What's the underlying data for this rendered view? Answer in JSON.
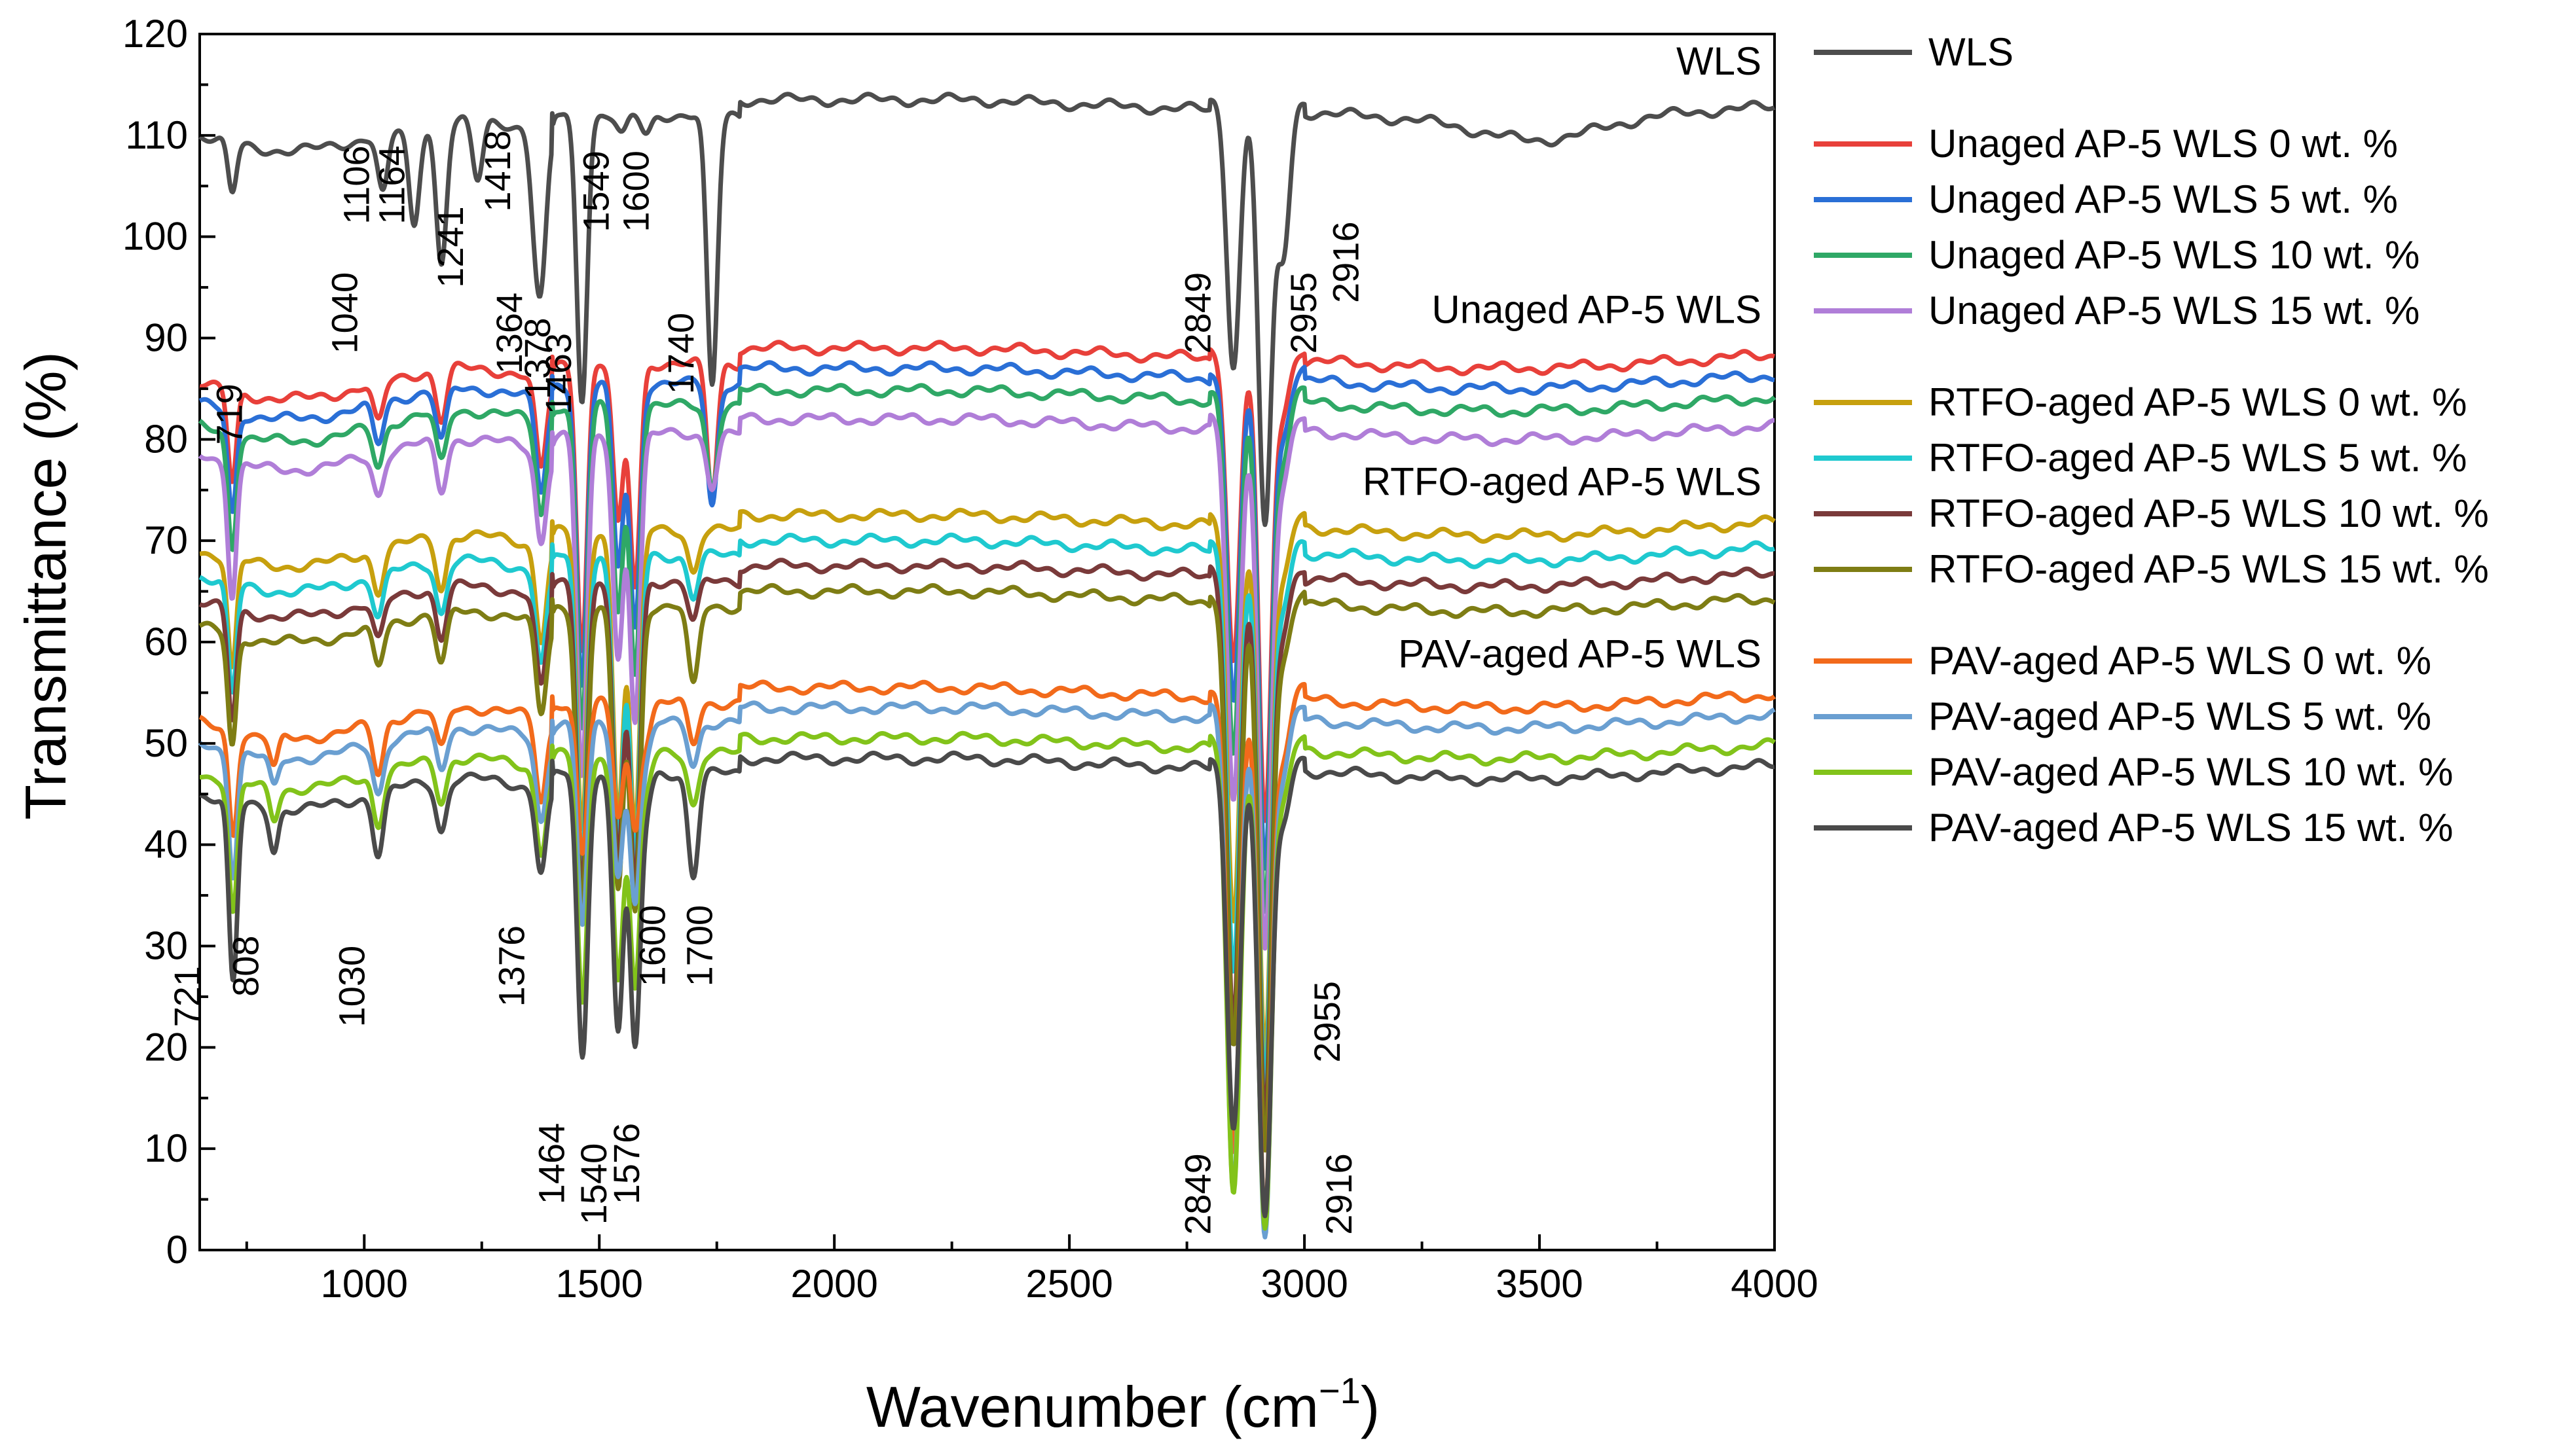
{
  "chart_data": {
    "type": "line",
    "title": "",
    "xlabel": "Wavenumber (cm",
    "xlabel_sup": "−1",
    "xlabel_close": ")",
    "ylabel": "Transmittance (%)",
    "xlim": [
      650,
      4000
    ],
    "ylim": [
      0,
      120
    ],
    "x_ticks": [
      1000,
      1500,
      2000,
      2500,
      3000,
      3500,
      4000
    ],
    "y_ticks": [
      0,
      10,
      20,
      30,
      40,
      50,
      60,
      70,
      80,
      90,
      100,
      110,
      120
    ],
    "group_labels": [
      {
        "text": "WLS",
        "x": 3950,
        "y": 116
      },
      {
        "text": "Unaged AP-5 WLS",
        "x": 3950,
        "y": 91.5
      },
      {
        "text": "RTFO-aged AP-5 WLS",
        "x": 3950,
        "y": 74.5
      },
      {
        "text": "PAV-aged AP-5 WLS",
        "x": 3950,
        "y": 57.5
      }
    ],
    "series": [
      {
        "name": "WLS",
        "color": "#4d4d4d",
        "baseline": 113.5,
        "depths": {
          "719": 5,
          "1040": 6,
          "1106": 10,
          "1164": 14,
          "1241": 6,
          "1364": 8,
          "1378": 12,
          "1463": 28,
          "1549": 2,
          "1600": 2,
          "1740": 27,
          "2849": 26,
          "2916": 42,
          "2955": 15,
          "3500": 2
        }
      },
      {
        "name": "Unaged AP-5 WLS 0 wt. %",
        "color": "#e8403a",
        "baseline": 89,
        "depths": {
          "719": 9,
          "1030": 4,
          "1164": 5,
          "1376": 9,
          "1463": 28,
          "1540": 16,
          "1576": 22,
          "1740": 13,
          "2849": 31,
          "2916": 47,
          "2955": 6
        }
      },
      {
        "name": "Unaged AP-5 WLS 5 wt. %",
        "color": "#2a6fd6",
        "baseline": 87,
        "depths": {
          "719": 10,
          "1030": 4,
          "1164": 5,
          "1376": 9,
          "1463": 30,
          "1540": 18,
          "1576": 24,
          "1740": 12,
          "2849": 33,
          "2916": 49,
          "2955": 6
        }
      },
      {
        "name": "Unaged AP-5 WLS 10 wt. %",
        "color": "#2fa866",
        "baseline": 84.8,
        "depths": {
          "719": 11,
          "1030": 4,
          "1164": 5,
          "1376": 9,
          "1463": 32,
          "1540": 20,
          "1576": 26,
          "1740": 8,
          "2849": 36,
          "2916": 51,
          "2955": 6
        }
      },
      {
        "name": "Unaged AP-5 WLS 15 wt. %",
        "color": "#b07ed8",
        "baseline": 82,
        "depths": {
          "719": 13,
          "1030": 4,
          "1164": 5,
          "1376": 9,
          "1463": 34,
          "1540": 22,
          "1576": 28,
          "1740": 5,
          "2849": 38,
          "2916": 52,
          "2955": 6
        }
      },
      {
        "name": "RTFO-aged AP-5 WLS 0 wt. %",
        "color": "#c7a00e",
        "baseline": 72.5,
        "depths": {
          "719": 11,
          "1030": 4,
          "1164": 5,
          "1376": 9,
          "1463": 30,
          "1540": 28,
          "1576": 30,
          "1700": 4,
          "2849": 40,
          "2916": 53,
          "2955": 6
        }
      },
      {
        "name": "RTFO-aged AP-5 WLS 5 wt. %",
        "color": "#1fc9cf",
        "baseline": 70,
        "depths": {
          "719": 11,
          "1030": 4,
          "1164": 5,
          "1376": 9,
          "1463": 30,
          "1540": 28,
          "1576": 30,
          "1700": 4,
          "2849": 42,
          "2916": 54,
          "2955": 6
        }
      },
      {
        "name": "RTFO-aged AP-5 WLS 10 wt. %",
        "color": "#7a3a3a",
        "baseline": 67.5,
        "depths": {
          "719": 11,
          "1030": 4,
          "1164": 5,
          "1376": 9,
          "1463": 30,
          "1540": 28,
          "1576": 30,
          "1700": 4,
          "2849": 45,
          "2916": 55,
          "2955": 6
        }
      },
      {
        "name": "RTFO-aged AP-5 WLS 15 wt. %",
        "color": "#7e7d14",
        "baseline": 65,
        "depths": {
          "719": 11,
          "1030": 4,
          "1164": 5,
          "1376": 9,
          "1463": 30,
          "1540": 28,
          "1576": 30,
          "1700": 8,
          "2849": 45,
          "2916": 55,
          "2955": 6
        }
      },
      {
        "name": "PAV-aged AP-5 WLS 0 wt. %",
        "color": "#f26a1b",
        "baseline": 55.5,
        "depths": {
          "721": 10,
          "808": 3,
          "1030": 5,
          "1164": 4,
          "1376": 8,
          "1464": 15,
          "1540": 11,
          "1576": 12,
          "1600": 3,
          "1700": 4,
          "2849": 46,
          "2916": 52,
          "2955": 6
        }
      },
      {
        "name": "PAV-aged AP-5 WLS 5 wt. %",
        "color": "#6a9fd1",
        "baseline": 53.5,
        "depths": {
          "721": 12,
          "808": 3,
          "1030": 5,
          "1164": 4,
          "1376": 8,
          "1464": 20,
          "1540": 15,
          "1576": 17,
          "1600": 3,
          "1700": 4,
          "2849": 48,
          "2916": 52,
          "2955": 6
        }
      },
      {
        "name": "PAV-aged AP-5 WLS 10 wt. %",
        "color": "#82c31a",
        "baseline": 50.5,
        "depths": {
          "721": 13,
          "808": 3,
          "1030": 5,
          "1164": 4,
          "1376": 8,
          "1464": 25,
          "1540": 22,
          "1576": 23,
          "1600": 3,
          "1700": 5,
          "2849": 45,
          "2916": 48,
          "2955": 6
        }
      },
      {
        "name": "PAV-aged AP-5 WLS 15 wt. %",
        "color": "#4a4a4a",
        "baseline": 48.5,
        "depths": {
          "721": 18,
          "808": 4,
          "1030": 6,
          "1164": 5,
          "1376": 8,
          "1464": 28,
          "1540": 25,
          "1576": 27,
          "1600": 3,
          "1700": 10,
          "2849": 36,
          "2916": 45,
          "2955": 6
        }
      }
    ],
    "annotations": [
      {
        "text": "719",
        "x": 740,
        "y": 85.5,
        "rotate": -90,
        "anchor": "end"
      },
      {
        "text": "1040",
        "x": 985,
        "y": 96.5,
        "rotate": -90,
        "anchor": "end"
      },
      {
        "text": "1106",
        "x": 1010,
        "y": 109,
        "rotate": -90,
        "anchor": "end"
      },
      {
        "text": "1164",
        "x": 1085,
        "y": 109,
        "rotate": -90,
        "anchor": "end"
      },
      {
        "text": "1241",
        "x": 1210,
        "y": 103,
        "rotate": -90,
        "anchor": "end"
      },
      {
        "text": "1418",
        "x": 1310,
        "y": 110.5,
        "rotate": -90,
        "anchor": "end"
      },
      {
        "text": "1364",
        "x": 1335,
        "y": 94.5,
        "rotate": -90,
        "anchor": "end"
      },
      {
        "text": "1378",
        "x": 1395,
        "y": 92,
        "rotate": -90,
        "anchor": "end"
      },
      {
        "text": "1463",
        "x": 1440,
        "y": 90.5,
        "rotate": -90,
        "anchor": "end"
      },
      {
        "text": "1549",
        "x": 1520,
        "y": 108.5,
        "rotate": -90,
        "anchor": "end"
      },
      {
        "text": "1600",
        "x": 1605,
        "y": 108.5,
        "rotate": -90,
        "anchor": "end"
      },
      {
        "text": "1740",
        "x": 1700,
        "y": 92.5,
        "rotate": -90,
        "anchor": "end"
      },
      {
        "text": "2849",
        "x": 2800,
        "y": 96.5,
        "rotate": -90,
        "anchor": "end"
      },
      {
        "text": "2955",
        "x": 3025,
        "y": 96.5,
        "rotate": -90,
        "anchor": "end"
      },
      {
        "text": "2916",
        "x": 3115,
        "y": 101.5,
        "rotate": -90,
        "anchor": "end"
      },
      {
        "text": "721",
        "x": 650,
        "y": 22,
        "rotate": -90,
        "anchor": "start"
      },
      {
        "text": "808",
        "x": 775,
        "y": 25,
        "rotate": -90,
        "anchor": "start"
      },
      {
        "text": "1030",
        "x": 1000,
        "y": 22,
        "rotate": -90,
        "anchor": "start"
      },
      {
        "text": "1376",
        "x": 1340,
        "y": 24,
        "rotate": -90,
        "anchor": "start"
      },
      {
        "text": "1464",
        "x": 1425,
        "y": 4.5,
        "rotate": -90,
        "anchor": "start"
      },
      {
        "text": "1540",
        "x": 1515,
        "y": 2.5,
        "rotate": -90,
        "anchor": "start"
      },
      {
        "text": "1576",
        "x": 1585,
        "y": 4.5,
        "rotate": -90,
        "anchor": "start"
      },
      {
        "text": "1600",
        "x": 1640,
        "y": 26,
        "rotate": -90,
        "anchor": "start"
      },
      {
        "text": "1700",
        "x": 1740,
        "y": 26,
        "rotate": -90,
        "anchor": "start"
      },
      {
        "text": "2849",
        "x": 2800,
        "y": 1.5,
        "rotate": -90,
        "anchor": "start"
      },
      {
        "text": "2955",
        "x": 3075,
        "y": 18.5,
        "rotate": -90,
        "anchor": "start"
      },
      {
        "text": "2916",
        "x": 3100,
        "y": 1.5,
        "rotate": -90,
        "anchor": "start"
      }
    ]
  }
}
